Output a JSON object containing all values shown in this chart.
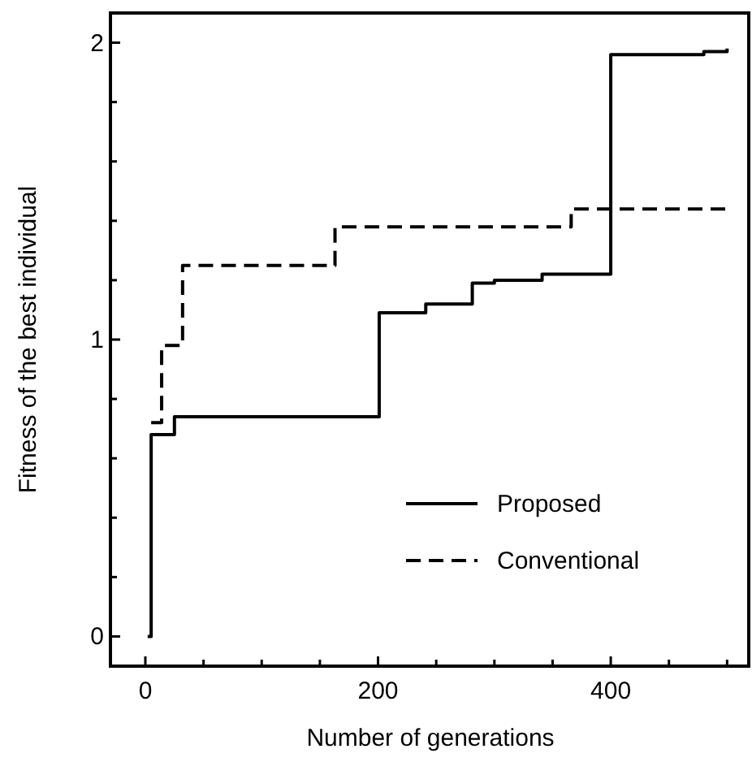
{
  "chart_data": {
    "type": "step",
    "xlabel": "Number of generations",
    "ylabel": "Fitness of the best individual",
    "xlim": [
      -30,
      520
    ],
    "ylim": [
      -0.1,
      2.1
    ],
    "xticks": [
      0,
      {
        "value": 50,
        "label": null
      },
      {
        "value": 100,
        "label": null
      },
      {
        "value": 150,
        "label": null
      },
      200,
      {
        "value": 250,
        "label": null
      },
      {
        "value": 300,
        "label": null
      },
      {
        "value": 350,
        "label": null
      },
      400,
      {
        "value": 450,
        "label": null
      },
      {
        "value": 500,
        "label": null
      }
    ],
    "yticks": [
      0,
      {
        "value": 0.2,
        "label": null
      },
      {
        "value": 0.4,
        "label": null
      },
      {
        "value": 0.6,
        "label": null
      },
      {
        "value": 0.8,
        "label": null
      },
      1,
      {
        "value": 1.2,
        "label": null
      },
      {
        "value": 1.4,
        "label": null
      },
      {
        "value": 1.6,
        "label": null
      },
      {
        "value": 1.8,
        "label": null
      },
      2
    ],
    "legend": "bottom right",
    "grid": false,
    "series": [
      {
        "name": "Proposed",
        "color": "#000000",
        "line_style": "solid",
        "x": [
          2,
          5,
          25,
          201,
          241,
          281,
          300,
          341,
          400,
          480,
          500
        ],
        "values": [
          0,
          0.68,
          0.74,
          1.09,
          1.12,
          1.19,
          1.2,
          1.22,
          1.96,
          1.97,
          1.98
        ]
      },
      {
        "name": "Conventional",
        "color": "#000000",
        "line_style": "dashed",
        "x": [
          5,
          14,
          32,
          163,
          366,
          500
        ],
        "values": [
          0.72,
          0.98,
          1.25,
          1.38,
          1.44,
          1.44
        ]
      }
    ]
  }
}
